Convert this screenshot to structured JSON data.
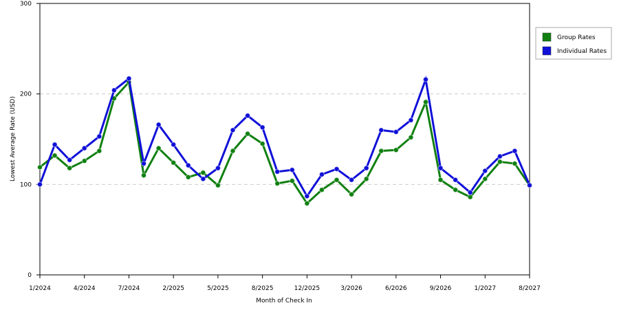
{
  "chart_data": {
    "type": "line",
    "x_label": "Month of Check In",
    "y_label": "Lowest Average Rate (USD)",
    "categories": [
      "1/2024",
      null,
      null,
      "4/2024",
      null,
      null,
      "7/2024",
      null,
      null,
      "2/2025",
      null,
      null,
      "5/2025",
      null,
      null,
      "8/2025",
      null,
      null,
      "12/2025",
      null,
      null,
      "3/2026",
      null,
      null,
      "6/2026",
      null,
      null,
      "9/2026",
      null,
      null,
      "1/2027",
      null,
      null,
      "8/2027"
    ],
    "series": [
      {
        "name": "Group Rates",
        "color": "#118011",
        "values": [
          119,
          132,
          118,
          126,
          137,
          195,
          213,
          110,
          140,
          124,
          108,
          113,
          99,
          137,
          156,
          145,
          101,
          104,
          79,
          94,
          105,
          89,
          106,
          137,
          138,
          152,
          191,
          105,
          94,
          86,
          106,
          125,
          123,
          99
        ]
      },
      {
        "name": "Individual Rates",
        "color": "#1010d8",
        "values": [
          100,
          144,
          127,
          140,
          153,
          204,
          217,
          123,
          166,
          144,
          121,
          106,
          118,
          160,
          176,
          163,
          114,
          116,
          87,
          111,
          117,
          105,
          118,
          160,
          158,
          171,
          216,
          118,
          105,
          91,
          115,
          131,
          137,
          99
        ]
      }
    ],
    "ylim": [
      0,
      300
    ],
    "yticks": [
      0,
      100,
      200,
      300
    ],
    "grid": true,
    "legend": "right"
  }
}
